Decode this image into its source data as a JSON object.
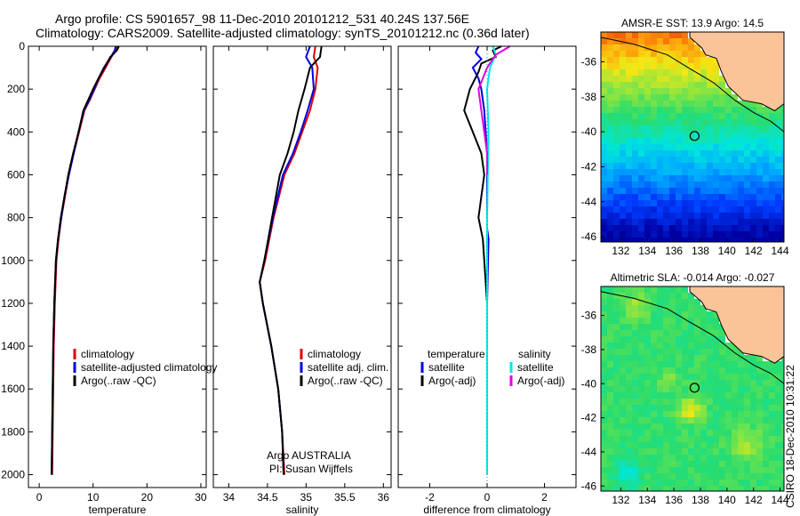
{
  "figure": {
    "title_line1": "Argo profile: CS 5901657_98 11-Dec-2010 20101212_531 40.24S 137.56E",
    "title_line2": "Climatology: CARS2009. Satellite-adjusted climatology: synTS_20101212.nc (0.36d later)",
    "stamp": "CSIRO 18-Dec-2010 10:31:22",
    "colors": {
      "climatology": "#e00000",
      "satellite": "#0000e0",
      "argo": "#000000",
      "sat_sal": "#00e8e8",
      "argo_sal": "#e000e0"
    }
  },
  "chart_data": [
    {
      "type": "line",
      "xlabel": "temperature",
      "ylabel": "",
      "xlim": [
        -2,
        31
      ],
      "ylim": [
        2060,
        0
      ],
      "y_reversed": true,
      "xticks": [
        0,
        10,
        20,
        30
      ],
      "yticks": [
        0,
        200,
        400,
        600,
        800,
        1000,
        1200,
        1400,
        1600,
        1800,
        2000
      ],
      "legend": {
        "placement": "lower-right",
        "entries": [
          "climatology",
          "satellite-adjusted climatology",
          "Argo(..raw -QC)"
        ]
      },
      "series": [
        {
          "name": "climatology",
          "color": "#e00000",
          "x": [
            14.6,
            14.2,
            13.4,
            12.3,
            11.2,
            10.3,
            9.4,
            8.4,
            7.4,
            6.4,
            5.5,
            4.8,
            4.1,
            3.6,
            3.2,
            2.9,
            2.7,
            2.6,
            2.5,
            2.4
          ],
          "y": [
            0,
            20,
            50,
            100,
            150,
            200,
            250,
            300,
            400,
            500,
            600,
            700,
            800,
            900,
            1000,
            1200,
            1400,
            1600,
            1800,
            2000
          ]
        },
        {
          "name": "satellite-adjusted climatology",
          "color": "#0000e0",
          "x": [
            14.2,
            14.0,
            13.3,
            12.0,
            11.0,
            10.2,
            9.3,
            8.3,
            7.3,
            6.4,
            5.5,
            4.7,
            4.1,
            3.5,
            3.1,
            2.8,
            2.6,
            2.5,
            2.4,
            2.3
          ],
          "y": [
            0,
            20,
            50,
            100,
            150,
            200,
            250,
            300,
            400,
            500,
            600,
            700,
            800,
            900,
            1000,
            1200,
            1400,
            1600,
            1800,
            2000
          ]
        },
        {
          "name": "Argo(..raw -QC)",
          "color": "#000000",
          "x": [
            14.8,
            14.4,
            13.2,
            12.1,
            11.0,
            10.0,
            9.1,
            8.2,
            7.3,
            6.3,
            5.4,
            4.7,
            4.0,
            3.5,
            3.1,
            2.8,
            2.6,
            2.5,
            2.4,
            2.3
          ],
          "y": [
            0,
            20,
            50,
            100,
            150,
            200,
            250,
            300,
            400,
            500,
            600,
            700,
            800,
            900,
            1000,
            1200,
            1400,
            1600,
            1800,
            2000
          ]
        }
      ]
    },
    {
      "type": "line",
      "xlabel": "salinity",
      "ylabel": "",
      "xlim": [
        33.8,
        36.1
      ],
      "ylim": [
        2060,
        0
      ],
      "y_reversed": true,
      "xticks": [
        34,
        34.5,
        35,
        35.5,
        36
      ],
      "legend": {
        "placement": "lower-right",
        "entries": [
          "climatology",
          "satellite adj. clim.",
          "Argo(..raw -QC)"
        ]
      },
      "annotation": [
        "Argo AUSTRALIA",
        "PI: Susan Wijffels"
      ],
      "series": [
        {
          "name": "climatology",
          "color": "#e00000",
          "x": [
            35.12,
            35.1,
            35.15,
            35.12,
            35.05,
            34.95,
            34.85,
            34.72,
            34.58,
            34.47,
            34.4,
            34.44,
            34.55,
            34.64,
            34.69,
            34.72
          ],
          "y": [
            0,
            50,
            100,
            200,
            300,
            400,
            500,
            600,
            800,
            1000,
            1100,
            1200,
            1400,
            1600,
            1800,
            2000
          ]
        },
        {
          "name": "satellite adj. clim.",
          "color": "#0000e0",
          "x": [
            35.05,
            35.0,
            35.08,
            35.1,
            35.02,
            34.93,
            34.83,
            34.7,
            34.57,
            34.46,
            34.4,
            34.44,
            34.55,
            34.64,
            34.69,
            34.71
          ],
          "y": [
            0,
            50,
            100,
            200,
            300,
            400,
            500,
            600,
            800,
            1000,
            1100,
            1200,
            1400,
            1600,
            1800,
            2000
          ]
        },
        {
          "name": "Argo(..raw -QC)",
          "color": "#000000",
          "x": [
            35.2,
            35.18,
            35.05,
            34.98,
            34.9,
            34.84,
            34.76,
            34.66,
            34.56,
            34.46,
            34.4,
            34.44,
            34.55,
            34.64,
            34.69,
            34.71
          ],
          "y": [
            0,
            50,
            100,
            200,
            300,
            400,
            500,
            600,
            800,
            1000,
            1100,
            1200,
            1400,
            1600,
            1800,
            2000
          ]
        }
      ]
    },
    {
      "type": "line",
      "xlabel": "difference from climatology",
      "ylabel": "",
      "xlim": [
        -3.1,
        3.1
      ],
      "ylim": [
        2060,
        0
      ],
      "y_reversed": true,
      "xticks": [
        -2,
        0,
        2
      ],
      "legend": {
        "placement": "lower-right",
        "headers": [
          "temperature",
          "salinity"
        ],
        "entries": [
          "satellite",
          "Argo(-adj)",
          "satellite",
          "Argo(-adj)"
        ]
      },
      "series": [
        {
          "name": "satellite",
          "group": "temperature",
          "color": "#0000e0",
          "x": [
            -0.3,
            -0.4,
            -0.2,
            -0.5,
            -0.3,
            -0.2,
            -0.1,
            -0.05,
            0,
            0,
            0,
            0.05,
            0,
            0,
            0
          ],
          "y": [
            0,
            30,
            60,
            100,
            150,
            200,
            300,
            400,
            500,
            700,
            850,
            900,
            1200,
            1600,
            2000
          ]
        },
        {
          "name": "Argo(-adj)",
          "group": "temperature",
          "color": "#000000",
          "x": [
            0.5,
            0.2,
            0.3,
            -0.2,
            -0.3,
            -0.6,
            -0.8,
            -0.5,
            -0.2,
            -0.1,
            -0.3,
            -0.15,
            -0.05,
            0,
            0
          ],
          "y": [
            0,
            20,
            50,
            80,
            120,
            200,
            300,
            400,
            500,
            600,
            800,
            900,
            1100,
            1200,
            1300
          ]
        },
        {
          "name": "satellite",
          "group": "salinity",
          "color": "#00e8e8",
          "x": [
            0.2,
            0.3,
            0.1,
            0.0,
            0.05,
            0.0,
            0,
            0,
            0
          ],
          "y": [
            0,
            40,
            100,
            200,
            400,
            800,
            1200,
            1600,
            2000
          ]
        },
        {
          "name": "Argo(-adj)",
          "group": "salinity",
          "color": "#e000e0",
          "x": [
            0.8,
            0.3,
            0.0,
            -0.3,
            -0.2,
            -0.1,
            0,
            0
          ],
          "y": [
            0,
            40,
            100,
            200,
            300,
            400,
            500,
            600
          ]
        }
      ]
    },
    {
      "type": "heatmap",
      "title": "AMSR-E SST: 13.9  Argo: 14.5",
      "xticks": [
        132,
        134,
        136,
        138,
        140,
        142,
        144
      ],
      "yticks": [
        -36,
        -38,
        -40,
        -42,
        -44,
        -46
      ],
      "xlim": [
        130.5,
        144.3
      ],
      "ylim": [
        -46.3,
        -34.3
      ],
      "marker": {
        "lon": 137.56,
        "lat": -40.24
      }
    },
    {
      "type": "heatmap",
      "title": "Altimetric SLA: -0.014  Argo: -0.027",
      "xticks": [
        132,
        134,
        136,
        138,
        140,
        142,
        144
      ],
      "yticks": [
        -36,
        -38,
        -40,
        -42,
        -44,
        -46
      ],
      "xlim": [
        130.5,
        144.3
      ],
      "ylim": [
        -46.3,
        -34.3
      ],
      "marker": {
        "lon": 137.56,
        "lat": -40.24
      }
    }
  ]
}
